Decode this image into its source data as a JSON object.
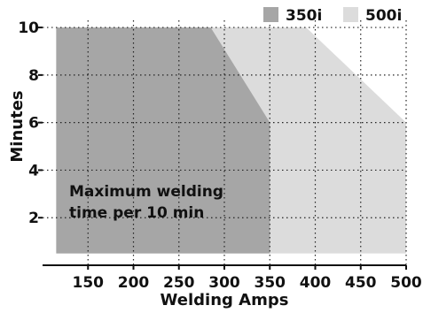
{
  "chart_data": {
    "type": "area",
    "title": "",
    "xlabel": "Welding Amps",
    "ylabel": "Minutes",
    "xlim": [
      100,
      500
    ],
    "ylim": [
      0,
      10.3
    ],
    "xticks": [
      150,
      200,
      250,
      300,
      350,
      400,
      450,
      500
    ],
    "yticks": [
      2,
      4,
      6,
      8,
      10
    ],
    "grid": true,
    "legend_position": "top-right",
    "series": [
      {
        "name": "500i",
        "color": "#dcdcdc",
        "points": [
          [
            115,
            10
          ],
          [
            390,
            10
          ],
          [
            500,
            6
          ],
          [
            500,
            0.5
          ],
          [
            115,
            0.5
          ]
        ]
      },
      {
        "name": "350i",
        "color": "#a6a6a6",
        "points": [
          [
            115,
            10
          ],
          [
            285,
            10
          ],
          [
            350,
            6
          ],
          [
            350,
            0.5
          ],
          [
            115,
            0.5
          ]
        ]
      }
    ],
    "annotation": {
      "line1": "Maximum welding",
      "line2": "time per 10 min"
    }
  }
}
